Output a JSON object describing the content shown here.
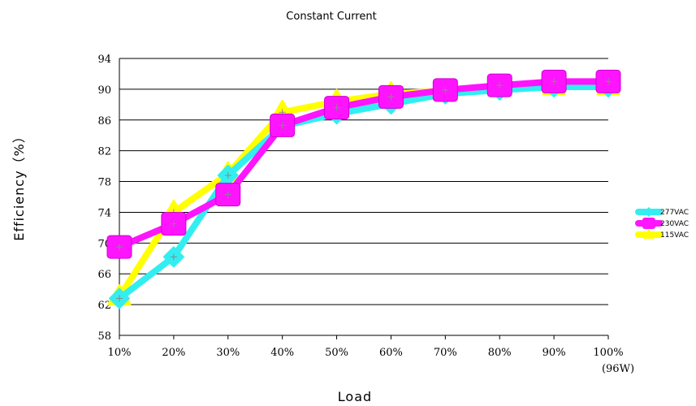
{
  "chart_data": {
    "type": "line",
    "title": "Constant Current",
    "xlabel": "Load",
    "ylabel": "Efficiency（%）",
    "categories": [
      "10%",
      "20%",
      "30%",
      "40%",
      "50%",
      "60%",
      "70%",
      "80%",
      "90%",
      "100%"
    ],
    "category_sublabels": [
      "",
      "",
      "",
      "",
      "",
      "",
      "",
      "",
      "",
      "(96W)"
    ],
    "yticks": [
      58,
      62,
      66,
      70,
      74,
      78,
      82,
      86,
      90,
      94
    ],
    "ylim": [
      58,
      94
    ],
    "grid": true,
    "legend_position": "right",
    "series": [
      {
        "name": "277VAC",
        "color": "#33eef0",
        "marker": "diamond",
        "values": [
          62.8,
          68.2,
          78.8,
          85.2,
          86.8,
          88.1,
          89.4,
          89.9,
          90.3,
          90.3
        ]
      },
      {
        "name": "230VAC",
        "color": "#ff14ff",
        "marker": "square",
        "values": [
          69.5,
          72.5,
          76.3,
          85.3,
          87.6,
          89.0,
          89.9,
          90.5,
          91.0,
          91.0
        ]
      },
      {
        "name": "115VAC",
        "color": "#ffff00",
        "marker": "triangle",
        "values": [
          63.0,
          74.0,
          79.0,
          87.0,
          88.4,
          89.4,
          89.8,
          90.2,
          90.3,
          90.3
        ]
      }
    ]
  }
}
